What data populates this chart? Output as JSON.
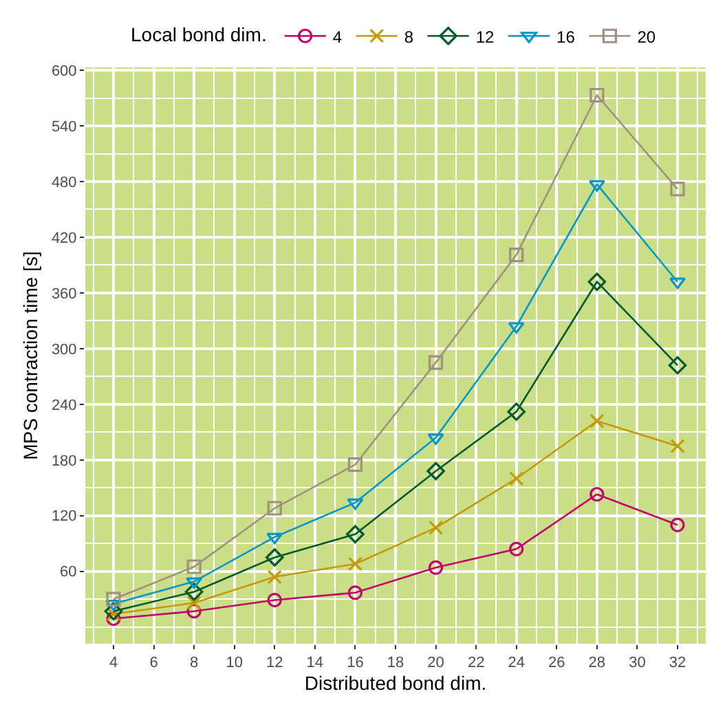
{
  "chart_data": {
    "type": "line",
    "xlabel": "Distributed bond dim.",
    "ylabel": "MPS contraction time [s]",
    "legend_title": "Local bond dim.",
    "legend": "top",
    "grid": true,
    "x": [
      4,
      8,
      12,
      16,
      20,
      24,
      28,
      32
    ],
    "xlim": [
      2.6,
      33.4
    ],
    "xticks": [
      4,
      6,
      8,
      10,
      12,
      14,
      16,
      18,
      20,
      22,
      24,
      26,
      28,
      30,
      32
    ],
    "ylim": [
      -18,
      603
    ],
    "yticks": [
      60,
      120,
      180,
      240,
      300,
      360,
      420,
      480,
      540,
      600
    ],
    "series": [
      {
        "name": "4",
        "color": "#c0006a",
        "marker": "circle",
        "values": [
          9,
          17,
          29,
          37,
          64,
          84,
          143,
          110
        ]
      },
      {
        "name": "8",
        "color": "#c49a00",
        "marker": "cross",
        "values": [
          14,
          26,
          54,
          68,
          107,
          160,
          222,
          195
        ]
      },
      {
        "name": "12",
        "color": "#005a2b",
        "marker": "diamond",
        "values": [
          17,
          38,
          75,
          100,
          168,
          232,
          372,
          282
        ]
      },
      {
        "name": "16",
        "color": "#0096c8",
        "marker": "triangle",
        "values": [
          25,
          49,
          97,
          134,
          204,
          324,
          477,
          372
        ]
      },
      {
        "name": "20",
        "color": "#a09080",
        "marker": "square",
        "values": [
          30,
          65,
          128,
          175,
          285,
          401,
          573,
          472
        ]
      }
    ]
  }
}
